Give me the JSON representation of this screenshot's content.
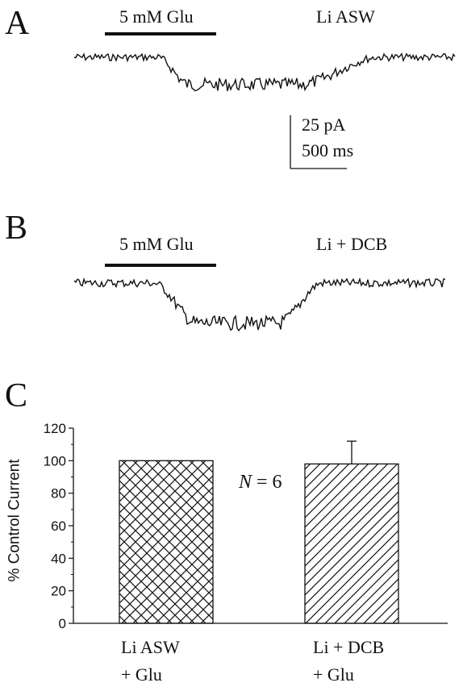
{
  "panels": {
    "a": {
      "letter": "A",
      "stimulus_label": "5 mM Glu",
      "condition_label": "Li ASW"
    },
    "b": {
      "letter": "B",
      "stimulus_label": "5 mM Glu",
      "condition_label": "Li + DCB"
    },
    "c": {
      "letter": "C"
    }
  },
  "scale_bar": {
    "current_label": "25 pA",
    "time_label": "500 ms"
  },
  "colors": {
    "ink": "#111111",
    "background": "#ffffff"
  },
  "chart_data": {
    "type": "bar",
    "ylabel": "% Control Current",
    "ylim": [
      0,
      120
    ],
    "yticks": [
      0,
      20,
      40,
      60,
      80,
      100,
      120
    ],
    "categories": [
      {
        "line1": "Li ASW",
        "line2": "+ Glu"
      },
      {
        "line1": "Li + DCB",
        "line2": "+ Glu"
      }
    ],
    "values": [
      100,
      98
    ],
    "errors": [
      0,
      14
    ],
    "patterns": [
      "crosshatch",
      "diagonal"
    ],
    "annotation": {
      "n_italic": "N",
      "n_rest": " = 6"
    }
  }
}
